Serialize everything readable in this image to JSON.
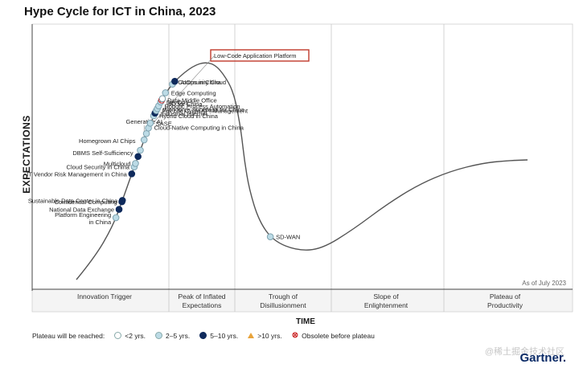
{
  "title": "Hype Cycle for ICT in China, 2023",
  "as_of": "As of July 2023",
  "watermark": "@稀土掘金技术社区",
  "logo": "Gartner.",
  "chart_data": {
    "type": "scatter",
    "title": "Hype Cycle for ICT in China, 2023",
    "xlabel": "TIME",
    "ylabel": "EXPECTATIONS",
    "phases": [
      "Innovation Trigger",
      "Peak of Inflated Expectations",
      "Trough of Disillusionment",
      "Slope of Enlightenment",
      "Plateau of Productivity"
    ],
    "highlighted": "Low-Code Application Platform",
    "legend": {
      "title": "Plateau will be reached:",
      "items": [
        {
          "key": "lt2",
          "label": "<2 yrs.",
          "color": "#ffffff"
        },
        {
          "key": "2to5",
          "label": "2–5 yrs.",
          "color": "#bcdbe6"
        },
        {
          "key": "5to10",
          "label": "5–10 yrs.",
          "color": "#0f2a5c"
        },
        {
          "key": "gt10",
          "label": ">10 yrs.",
          "color": "#e8a33a"
        },
        {
          "key": "obsolete",
          "label": "Obsolete before plateau",
          "color": "#cc2b2b"
        }
      ]
    },
    "points": [
      {
        "name": "Platform Engineering in China",
        "t": 0.1,
        "cat": "2to5"
      },
      {
        "name": "National Data Exchange",
        "t": 0.112,
        "cat": "5to10"
      },
      {
        "name": "Confidential Computing",
        "t": 0.123,
        "cat": "5to10"
      },
      {
        "name": "Sustainable Data Center in China",
        "t": 0.125,
        "cat": "5to10"
      },
      {
        "name": "IT Vendor Risk Management in China",
        "t": 0.163,
        "cat": "5to10"
      },
      {
        "name": "Cloud Security in China",
        "t": 0.173,
        "cat": "2to5"
      },
      {
        "name": "Multicloud",
        "t": 0.178,
        "cat": "2to5"
      },
      {
        "name": "DBMS Self-Sufficiency",
        "t": 0.188,
        "cat": "5to10"
      },
      {
        "name": "Homegrown AI Chips",
        "t": 0.197,
        "cat": "2to5"
      },
      {
        "name": "Generative AI",
        "t": 0.212,
        "cat": "2to5"
      },
      {
        "name": "Low-Code Application Platform",
        "t": 0.221,
        "cat": "2to5"
      },
      {
        "name": "Cloud-Native Computing in China",
        "t": 0.229,
        "cat": "2to5"
      },
      {
        "name": "SASE",
        "t": 0.236,
        "cat": "2to5"
      },
      {
        "name": "Hybrid Cloud in China",
        "t": 0.247,
        "cat": "2to5"
      },
      {
        "name": "Industrial Internet",
        "t": 0.251,
        "cat": "5to10"
      },
      {
        "name": "Full Life Cycle API Management",
        "t": 0.255,
        "cat": "2to5"
      },
      {
        "name": "Workforce Superapp for China",
        "t": 0.258,
        "cat": "2to5"
      },
      {
        "name": "Robotic Process Automation",
        "t": 0.262,
        "cat": "2to5"
      },
      {
        "name": "DevOps",
        "t": 0.268,
        "cat": "2to5"
      },
      {
        "name": "Data Middle Office",
        "t": 0.271,
        "cat": "obsolete"
      },
      {
        "name": "5G for China",
        "t": 0.273,
        "cat": "lt2"
      },
      {
        "name": "Edge Computing",
        "t": 0.282,
        "cat": "2to5"
      },
      {
        "name": "Community Cloud",
        "t": 0.297,
        "cat": "2to5"
      },
      {
        "name": "AIOps in China",
        "t": 0.302,
        "cat": "5to10"
      },
      {
        "name": "SD-WAN",
        "t": 0.615,
        "cat": "2to5"
      }
    ]
  }
}
